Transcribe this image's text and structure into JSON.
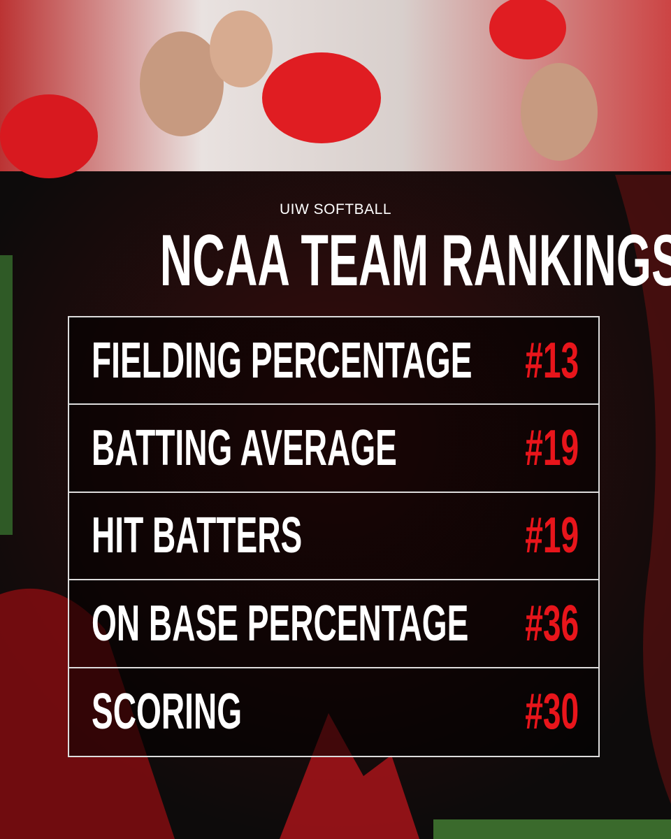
{
  "header": {
    "kicker": "UIW SOFTBALL",
    "title": "NCAA TEAM RANKINGS"
  },
  "table": {
    "rows": [
      {
        "label": "FIELDING PERCENTAGE",
        "rank": "#13"
      },
      {
        "label": "BATTING AVERAGE",
        "rank": "#19"
      },
      {
        "label": "HIT BATTERS",
        "rank": "#19"
      },
      {
        "label": "ON BASE PERCENTAGE",
        "rank": "#36"
      },
      {
        "label": "SCORING",
        "rank": "#30"
      }
    ]
  }
}
